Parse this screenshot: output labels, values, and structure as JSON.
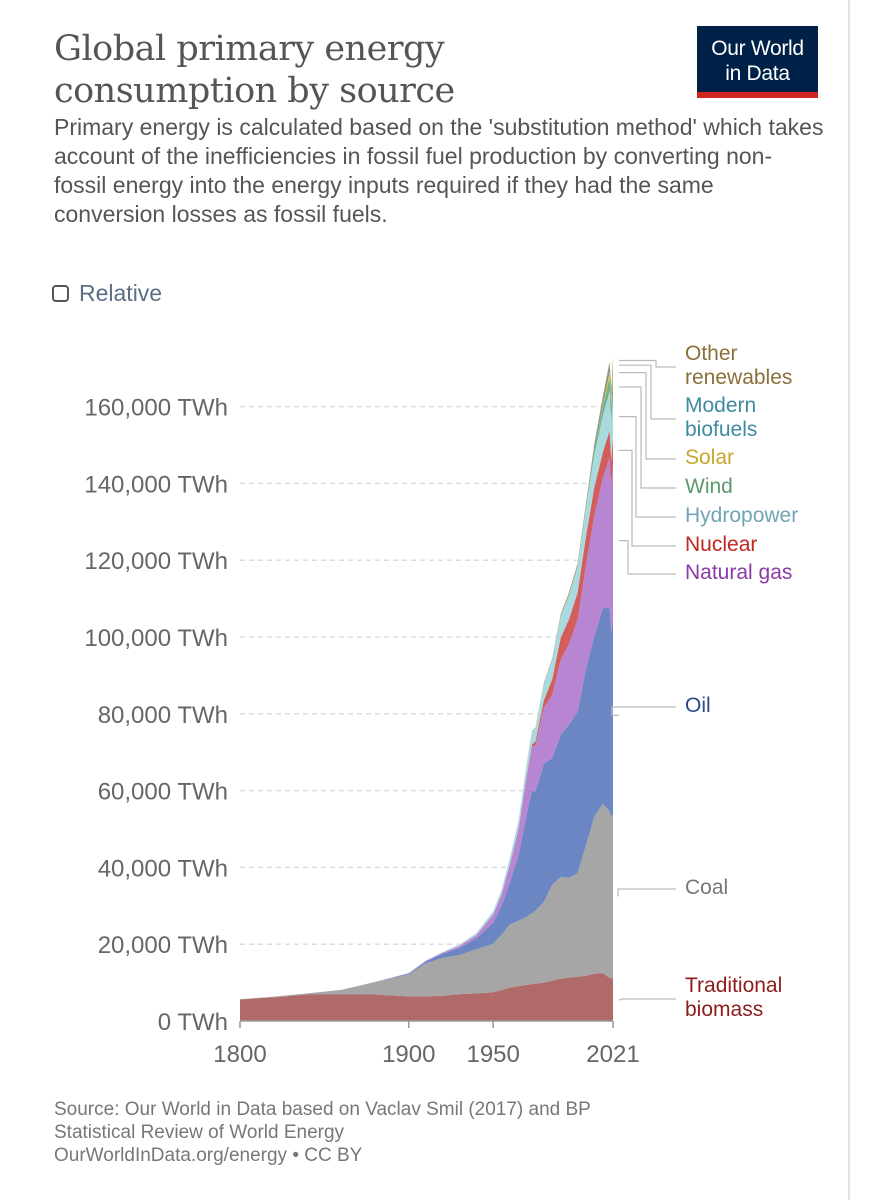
{
  "header": {
    "title_line1": "Global primary energy",
    "title_line2": "consumption by source",
    "subtitle": "Primary energy is calculated based on the 'substitution method' which takes account of the inefficiencies in fossil fuel production by converting non-fossil energy into the energy inputs required if they had the same conversion losses as fossil fuels."
  },
  "logo": {
    "line1": "Our World",
    "line2": "in Data",
    "bg_color": "#002147",
    "accent_color": "#ce261e"
  },
  "controls": {
    "relative_label": "Relative",
    "relative_checked": false
  },
  "footer": {
    "line1": "Source: Our World in Data based on Vaclav Smil (2017) and BP",
    "line2": "Statistical Review of World Energy",
    "line3": "OurWorldInData.org/energy • CC BY"
  },
  "chart_data": {
    "type": "area",
    "stacked": true,
    "unit": "TWh",
    "x": [
      1800,
      1820,
      1840,
      1860,
      1880,
      1900,
      1910,
      1920,
      1930,
      1940,
      1950,
      1955,
      1960,
      1965,
      1970,
      1973,
      1975,
      1980,
      1985,
      1990,
      1995,
      2000,
      2005,
      2010,
      2015,
      2019,
      2020,
      2021
    ],
    "x_ticks": [
      "1800",
      "1900",
      "1950",
      "2021"
    ],
    "x_tick_values": [
      1800,
      1900,
      1950,
      2021
    ],
    "y_ticks": [
      "0 TWh",
      "20,000 TWh",
      "40,000 TWh",
      "60,000 TWh",
      "80,000 TWh",
      "100,000 TWh",
      "120,000 TWh",
      "140,000 TWh",
      "160,000 TWh"
    ],
    "y_tick_values": [
      0,
      20000,
      40000,
      60000,
      80000,
      100000,
      120000,
      140000,
      160000
    ],
    "ylim": [
      0,
      180000
    ],
    "xlim": [
      1800,
      2021
    ],
    "grid": "horizontal dashed",
    "series": [
      {
        "name": "Traditional biomass",
        "label_lines": [
          "Traditional",
          "biomass"
        ],
        "color": "#b06a6a",
        "label_color": "#8e1c1c",
        "values": [
          5600,
          6200,
          6900,
          6900,
          6900,
          6400,
          6400,
          6600,
          7000,
          7200,
          7500,
          8000,
          8700,
          9100,
          9400,
          9600,
          9700,
          10000,
          10500,
          11000,
          11300,
          11500,
          11800,
          12300,
          12500,
          11200,
          11100,
          11100
        ]
      },
      {
        "name": "Coal",
        "label_lines": [
          "Coal"
        ],
        "color": "#a6a6a6",
        "label_color": "#777777",
        "values": [
          100,
          150,
          300,
          1200,
          3200,
          5800,
          8600,
          9800,
          10200,
          11500,
          12600,
          14500,
          16500,
          17000,
          17800,
          18500,
          19000,
          21000,
          25000,
          26500,
          26000,
          27000,
          34000,
          41000,
          44000,
          43500,
          42000,
          43000
        ]
      },
      {
        "name": "Oil",
        "label_lines": [
          "Oil"
        ],
        "color": "#6b86c2",
        "label_color": "#2a4a8c",
        "values": [
          0,
          0,
          0,
          0,
          50,
          200,
          500,
          1100,
          1800,
          2800,
          5500,
          7500,
          11000,
          17000,
          27000,
          32000,
          31000,
          36000,
          33000,
          37000,
          40000,
          42000,
          46000,
          47000,
          51000,
          53000,
          48000,
          51000
        ]
      },
      {
        "name": "Natural gas",
        "label_lines": [
          "Natural gas"
        ],
        "color": "#b785d2",
        "label_color": "#8b3aa6",
        "values": [
          0,
          0,
          0,
          0,
          0,
          70,
          150,
          250,
          550,
          850,
          2100,
          3000,
          4700,
          6800,
          10000,
          11500,
          12000,
          14500,
          16500,
          19500,
          21000,
          24000,
          27000,
          31500,
          34000,
          39000,
          38000,
          40000
        ]
      },
      {
        "name": "Nuclear",
        "label_lines": [
          "Nuclear"
        ],
        "color": "#d35d5d",
        "label_color": "#c0261f",
        "values": [
          0,
          0,
          0,
          0,
          0,
          0,
          0,
          0,
          0,
          0,
          0,
          0,
          0,
          100,
          200,
          500,
          1000,
          2000,
          4000,
          5800,
          6400,
          7000,
          7400,
          7300,
          6700,
          7000,
          6800,
          7000
        ]
      },
      {
        "name": "Hydropower",
        "label_lines": [
          "Hydropower"
        ],
        "color": "#a9dadd",
        "label_color": "#6fa6b5",
        "values": [
          0,
          0,
          0,
          0,
          0,
          20,
          100,
          200,
          350,
          500,
          900,
          1200,
          1700,
          2200,
          3000,
          3400,
          3600,
          4300,
          5000,
          5600,
          6300,
          6800,
          7400,
          8500,
          9500,
          10300,
          10500,
          10600
        ]
      },
      {
        "name": "Wind",
        "label_lines": [
          "Wind"
        ],
        "color": "#6fb08f",
        "label_color": "#5b9a6b",
        "values": [
          0,
          0,
          0,
          0,
          0,
          0,
          0,
          0,
          0,
          0,
          0,
          0,
          0,
          0,
          0,
          0,
          0,
          0,
          0,
          10,
          20,
          80,
          250,
          900,
          2200,
          3500,
          3900,
          4800
        ]
      },
      {
        "name": "Solar",
        "label_lines": [
          "Solar"
        ],
        "color": "#d9bf4a",
        "label_color": "#c8a72b",
        "values": [
          0,
          0,
          0,
          0,
          0,
          0,
          0,
          0,
          0,
          0,
          0,
          0,
          0,
          0,
          0,
          0,
          0,
          0,
          0,
          0,
          0,
          5,
          20,
          90,
          650,
          1800,
          2200,
          2700
        ]
      },
      {
        "name": "Modern biofuels",
        "label_lines": [
          "Modern",
          "biofuels"
        ],
        "color": "#4f93a3",
        "label_color": "#3f8aa0",
        "values": [
          0,
          0,
          0,
          0,
          0,
          0,
          0,
          0,
          0,
          0,
          0,
          0,
          0,
          0,
          0,
          0,
          0,
          40,
          80,
          120,
          160,
          180,
          320,
          900,
          1000,
          1200,
          1100,
          1150
        ]
      },
      {
        "name": "Other renewables",
        "label_lines": [
          "Other",
          "renewables"
        ],
        "color": "#a48c5a",
        "label_color": "#8c6f3a",
        "values": [
          0,
          0,
          0,
          0,
          0,
          0,
          0,
          0,
          0,
          0,
          0,
          0,
          0,
          0,
          50,
          80,
          100,
          200,
          300,
          400,
          500,
          550,
          700,
          900,
          1100,
          1200,
          1250,
          1300
        ]
      }
    ]
  }
}
